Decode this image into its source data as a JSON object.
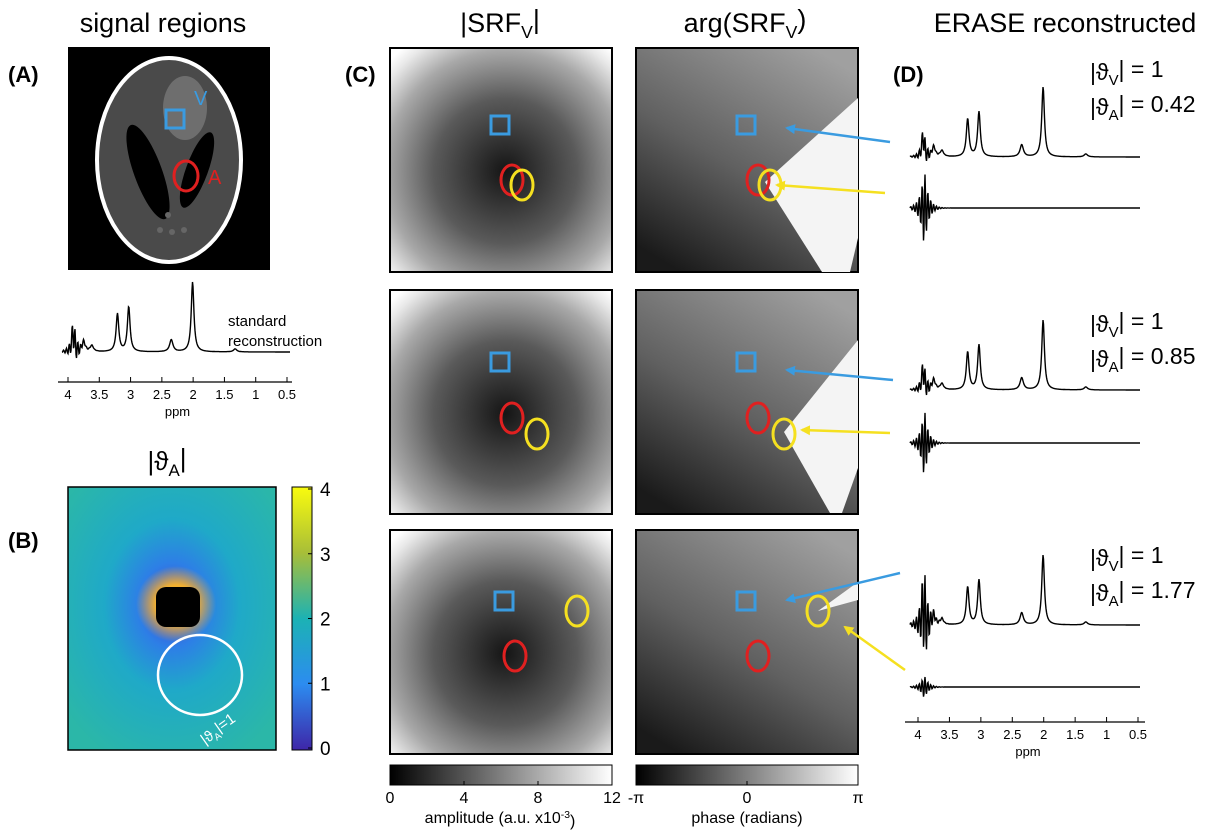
{
  "headers": [
    {
      "text": "signal regions"
    },
    {
      "text": "|SRF",
      "sub": "V",
      "end": "|"
    },
    {
      "text": "arg(SRF",
      "sub": "V",
      "end": ")"
    },
    {
      "text": "ERASE reconstructed"
    }
  ],
  "panel_labels": [
    "(A)",
    "(B)",
    "(C)",
    "(D)"
  ],
  "panel_a": {
    "region_labels": [
      "V",
      "A"
    ],
    "note": [
      "standard",
      "reconstruction"
    ],
    "axis": {
      "ticks": [
        "4",
        "3.5",
        "3",
        "2.5",
        "2",
        "1.5",
        "1",
        "0.5"
      ],
      "label": "ppm"
    }
  },
  "panel_b": {
    "title": {
      "text": "|ϑ",
      "sub": "A",
      "end": "|"
    },
    "colorbar_ticks": [
      "0",
      "1",
      "2",
      "3",
      "4"
    ],
    "contour_label": {
      "text": "|ϑ",
      "sub": "A",
      "end": "|=1"
    }
  },
  "panel_c": {
    "amplitude_ticks": [
      "0",
      "4",
      "8",
      "12"
    ],
    "amplitude_label": {
      "text": "amplitude (a.u. x10",
      "sup": "-3",
      "end": ")"
    },
    "phase_ticks": [
      "-π",
      "0",
      "π"
    ],
    "phase_label": "phase (radians)"
  },
  "panel_d": {
    "rows": [
      {
        "v": {
          "text": "|ϑ",
          "sub": "V",
          "end": "| = 1"
        },
        "a": {
          "text": "|ϑ",
          "sub": "A",
          "end": "| = 0.42"
        }
      },
      {
        "v": {
          "text": "|ϑ",
          "sub": "V",
          "end": "| = 1"
        },
        "a": {
          "text": "|ϑ",
          "sub": "A",
          "end": "| = 0.85"
        }
      },
      {
        "v": {
          "text": "|ϑ",
          "sub": "V",
          "end": "| = 1"
        },
        "a": {
          "text": "|ϑ",
          "sub": "A",
          "end": "| = 1.77"
        }
      }
    ],
    "axis": {
      "ticks": [
        "4",
        "3.5",
        "3",
        "2.5",
        "2",
        "1.5",
        "1",
        "0.5"
      ],
      "label": "ppm"
    }
  }
}
